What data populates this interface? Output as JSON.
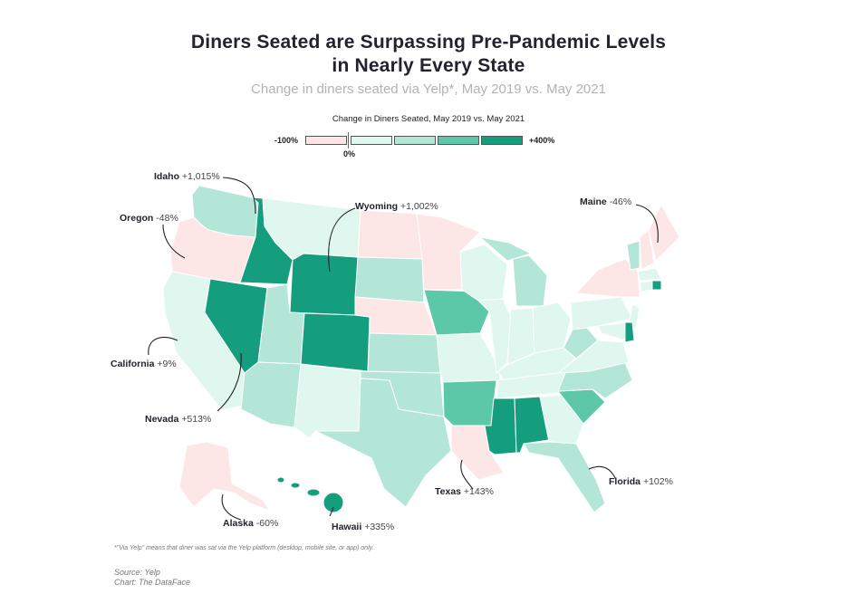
{
  "title_line1": "Diners Seated are Surpassing Pre-Pandemic Levels",
  "title_line2": "in Nearly Every State",
  "subtitle": "Change in diners seated via Yelp*, May 2019 vs. May 2021",
  "legend": {
    "title": "Change in Diners Seated, May 2019 vs. May 2021",
    "min_label": "-100%",
    "zero_label": "0%",
    "max_label": "+400%",
    "bins": [
      {
        "color": "#fde6e6"
      },
      {
        "color": "#e0f7f0"
      },
      {
        "color": "#b4e6d8"
      },
      {
        "color": "#5cc8a7"
      },
      {
        "color": "#159e7e"
      }
    ]
  },
  "colors": {
    "negative": "#fde6e6",
    "low": "#e0f7f0",
    "mid": "#b4e6d8",
    "high": "#5cc8a7",
    "top": "#159e7e"
  },
  "callouts": [
    {
      "state": "Idaho",
      "value": "+1,015%"
    },
    {
      "state": "Wyoming",
      "value": "+1,002%"
    },
    {
      "state": "Maine",
      "value": "-46%"
    },
    {
      "state": "Oregon",
      "value": "-48%"
    },
    {
      "state": "California",
      "value": "+9%"
    },
    {
      "state": "Nevada",
      "value": "+513%"
    },
    {
      "state": "Florida",
      "value": "+102%"
    },
    {
      "state": "Texas",
      "value": "+143%"
    },
    {
      "state": "Alaska",
      "value": "-60%"
    },
    {
      "state": "Hawaii",
      "value": "+335%"
    }
  ],
  "footnote": "*\"Via Yelp\" means that diner was sat via the Yelp platform (desktop, mobile site, or app) only.",
  "source": "Source: Yelp",
  "chart_credit": "Chart: The DataFace"
}
